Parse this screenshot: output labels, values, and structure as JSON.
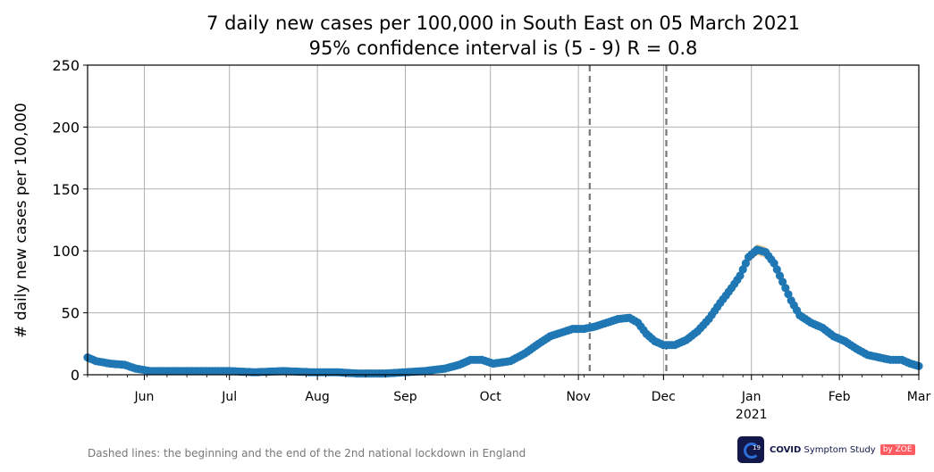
{
  "chart_data": {
    "type": "line",
    "title": "7 daily new cases per 100,000 in South East on 05 March 2021",
    "subtitle": "95% confidence interval is (5 - 9) R = 0.8",
    "ylabel": "# daily new cases per 100,000",
    "xlabel": "",
    "ylim": [
      0,
      250
    ],
    "yticks": [
      "0",
      "50",
      "100",
      "150",
      "200",
      "250"
    ],
    "xlim": [
      "2020-05-12",
      "2021-03-01"
    ],
    "xticks": [
      {
        "date": "2020-06-01",
        "label": "Jun",
        "sublabel": ""
      },
      {
        "date": "2020-07-01",
        "label": "Jul",
        "sublabel": ""
      },
      {
        "date": "2020-08-01",
        "label": "Aug",
        "sublabel": ""
      },
      {
        "date": "2020-09-01",
        "label": "Sep",
        "sublabel": ""
      },
      {
        "date": "2020-10-01",
        "label": "Oct",
        "sublabel": ""
      },
      {
        "date": "2020-11-01",
        "label": "Nov",
        "sublabel": ""
      },
      {
        "date": "2020-12-01",
        "label": "Dec",
        "sublabel": ""
      },
      {
        "date": "2021-01-01",
        "label": "Jan",
        "sublabel": "2021"
      },
      {
        "date": "2021-02-01",
        "label": "Feb",
        "sublabel": ""
      },
      {
        "date": "2021-03-01",
        "label": "Mar",
        "sublabel": ""
      }
    ],
    "grid": true,
    "lockdown_lines": [
      "2020-11-05",
      "2020-12-02"
    ],
    "series_color": "#1f77b4",
    "ci_color": "#f5c98a",
    "points": [
      [
        "2020-05-12",
        14
      ],
      [
        "2020-05-15",
        11
      ],
      [
        "2020-05-20",
        9
      ],
      [
        "2020-05-25",
        8
      ],
      [
        "2020-05-29",
        5
      ],
      [
        "2020-06-03",
        3
      ],
      [
        "2020-06-10",
        3
      ],
      [
        "2020-06-17",
        3
      ],
      [
        "2020-06-24",
        3
      ],
      [
        "2020-07-01",
        3
      ],
      [
        "2020-07-10",
        2
      ],
      [
        "2020-07-20",
        3
      ],
      [
        "2020-07-30",
        2
      ],
      [
        "2020-08-08",
        2
      ],
      [
        "2020-08-15",
        1
      ],
      [
        "2020-08-25",
        1
      ],
      [
        "2020-09-01",
        2
      ],
      [
        "2020-09-08",
        3
      ],
      [
        "2020-09-15",
        5
      ],
      [
        "2020-09-20",
        8
      ],
      [
        "2020-09-24",
        12
      ],
      [
        "2020-09-28",
        12
      ],
      [
        "2020-10-02",
        9
      ],
      [
        "2020-10-08",
        11
      ],
      [
        "2020-10-13",
        17
      ],
      [
        "2020-10-18",
        25
      ],
      [
        "2020-10-22",
        31
      ],
      [
        "2020-10-26",
        34
      ],
      [
        "2020-10-30",
        37
      ],
      [
        "2020-11-03",
        37
      ],
      [
        "2020-11-07",
        39
      ],
      [
        "2020-11-11",
        42
      ],
      [
        "2020-11-15",
        45
      ],
      [
        "2020-11-19",
        46
      ],
      [
        "2020-11-22",
        42
      ],
      [
        "2020-11-25",
        33
      ],
      [
        "2020-11-28",
        27
      ],
      [
        "2020-12-01",
        24
      ],
      [
        "2020-12-05",
        24
      ],
      [
        "2020-12-09",
        28
      ],
      [
        "2020-12-13",
        35
      ],
      [
        "2020-12-17",
        45
      ],
      [
        "2020-12-21",
        58
      ],
      [
        "2020-12-25",
        70
      ],
      [
        "2020-12-28",
        80
      ],
      [
        "2020-12-31",
        95
      ],
      [
        "2021-01-03",
        101
      ],
      [
        "2021-01-06",
        99
      ],
      [
        "2021-01-09",
        90
      ],
      [
        "2021-01-12",
        75
      ],
      [
        "2021-01-15",
        60
      ],
      [
        "2021-01-18",
        48
      ],
      [
        "2021-01-22",
        42
      ],
      [
        "2021-01-26",
        38
      ],
      [
        "2021-01-30",
        31
      ],
      [
        "2021-02-03",
        27
      ],
      [
        "2021-02-07",
        21
      ],
      [
        "2021-02-11",
        16
      ],
      [
        "2021-02-15",
        14
      ],
      [
        "2021-02-19",
        12
      ],
      [
        "2021-02-23",
        12
      ],
      [
        "2021-02-26",
        9
      ],
      [
        "2021-03-01",
        7
      ]
    ]
  },
  "footnote": "Dashed lines: the beginning and the end of the 2nd national lockdown in England",
  "logo": {
    "brand": "COVID",
    "name": "Symptom Study",
    "by": "by",
    "partner": "ZOE",
    "icon_text": "19"
  }
}
